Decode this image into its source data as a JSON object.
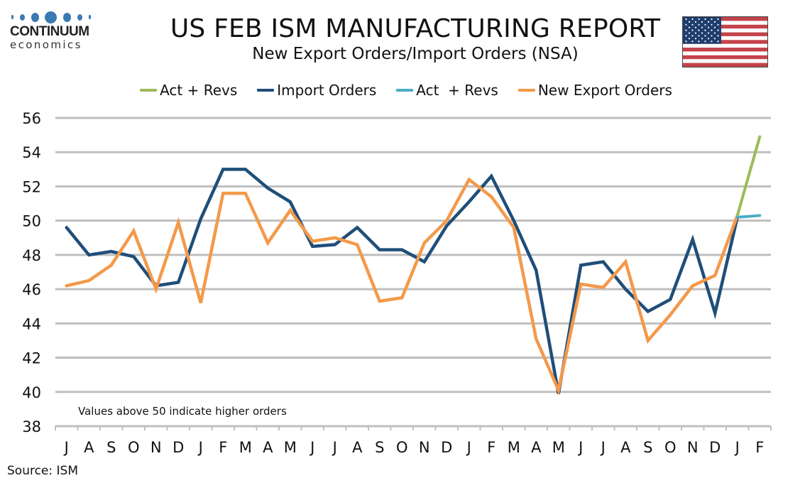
{
  "logo": {
    "name": "CONTINUUM",
    "sub": "economics"
  },
  "header": {
    "title": "US FEB ISM MANUFACTURING REPORT",
    "subtitle": "New Export Orders/Import Orders (NSA)",
    "flag_icon": "us-flag-icon"
  },
  "colors": {
    "import_orders": "#1f4e79",
    "new_export_orders": "#f4994a",
    "act_revs_export": "#9bbb59",
    "act_revs_import": "#4bacc6",
    "gridline": "#bfbfbf"
  },
  "source": "Source: ISM",
  "chart_data": {
    "type": "line",
    "title": "US FEB ISM MANUFACTURING REPORT",
    "subtitle": "New Export Orders/Import Orders (NSA)",
    "xlabel": "",
    "ylabel": "",
    "ylim": [
      38,
      56
    ],
    "yticks": [
      38,
      40,
      42,
      44,
      46,
      48,
      50,
      52,
      54,
      56
    ],
    "grid": true,
    "legend_position": "top",
    "annotation": "Values above 50 indicate higher orders",
    "categories": [
      "J",
      "A",
      "S",
      "O",
      "N",
      "D",
      "J",
      "F",
      "M",
      "A",
      "M",
      "J",
      "J",
      "A",
      "S",
      "O",
      "N",
      "D",
      "J",
      "F",
      "M",
      "A",
      "M",
      "J",
      "J",
      "A",
      "S",
      "O",
      "N",
      "D",
      "J",
      "F"
    ],
    "legend": [
      "Act + Revs",
      "Import Orders",
      "Act  + Revs",
      "New Export Orders"
    ],
    "series": [
      {
        "name": "Act + Revs",
        "key": "act_revs_export",
        "values": [
          null,
          null,
          null,
          null,
          null,
          null,
          null,
          null,
          null,
          null,
          null,
          null,
          null,
          null,
          null,
          null,
          null,
          null,
          null,
          null,
          null,
          null,
          null,
          null,
          null,
          null,
          null,
          null,
          null,
          null,
          50.3,
          54.9
        ]
      },
      {
        "name": "Import Orders",
        "key": "import_orders",
        "values": [
          49.6,
          48.0,
          48.2,
          47.9,
          46.2,
          46.4,
          50.1,
          53.0,
          53.0,
          51.9,
          51.1,
          48.5,
          48.6,
          49.6,
          48.3,
          48.3,
          47.6,
          49.7,
          51.1,
          52.6,
          50.0,
          47.1,
          39.9,
          47.4,
          47.6,
          46.0,
          44.7,
          45.4,
          48.9,
          44.6,
          50.2,
          null
        ]
      },
      {
        "name": "Act  + Revs",
        "key": "act_revs_import",
        "values": [
          null,
          null,
          null,
          null,
          null,
          null,
          null,
          null,
          null,
          null,
          null,
          null,
          null,
          null,
          null,
          null,
          null,
          null,
          null,
          null,
          null,
          null,
          null,
          null,
          null,
          null,
          null,
          null,
          null,
          null,
          50.2,
          50.3
        ]
      },
      {
        "name": "New Export Orders",
        "key": "new_export_orders",
        "values": [
          46.2,
          46.5,
          47.4,
          49.4,
          46.0,
          49.9,
          45.2,
          51.6,
          51.6,
          48.7,
          50.6,
          48.8,
          49.0,
          48.6,
          45.3,
          45.5,
          48.7,
          50.0,
          52.4,
          51.4,
          49.6,
          43.1,
          40.1,
          46.3,
          46.1,
          47.6,
          43.0,
          44.5,
          46.2,
          46.8,
          50.3,
          null
        ]
      }
    ]
  }
}
